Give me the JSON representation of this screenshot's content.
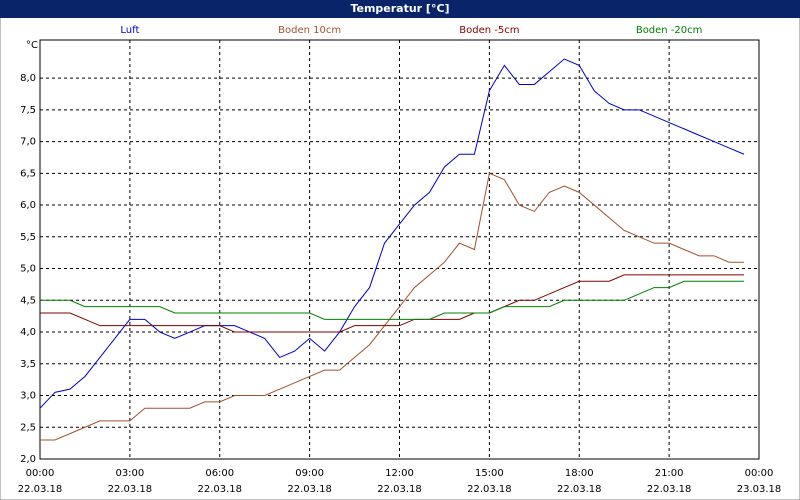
{
  "chart_data": {
    "type": "line",
    "title": "Temperatur [°C]",
    "ylabel": "°C",
    "x": [
      0,
      0.5,
      1,
      1.5,
      2,
      2.5,
      3,
      3.5,
      4,
      4.5,
      5,
      5.5,
      6,
      6.5,
      7,
      7.5,
      8,
      8.5,
      9,
      9.5,
      10,
      10.5,
      11,
      11.5,
      12,
      12.5,
      13,
      13.5,
      14,
      14.5,
      15,
      15.5,
      16,
      16.5,
      17,
      17.5,
      18,
      18.5,
      19,
      19.5,
      20,
      20.5,
      21,
      21.5,
      22,
      22.5,
      23,
      23.5
    ],
    "series": [
      {
        "name": "Luft",
        "color": "#0000cc",
        "values": [
          2.8,
          3.05,
          3.1,
          3.3,
          3.6,
          3.9,
          4.2,
          4.2,
          4.0,
          3.9,
          4.0,
          4.1,
          4.1,
          4.1,
          4.0,
          3.9,
          3.6,
          3.7,
          3.9,
          3.7,
          4.0,
          4.4,
          4.7,
          5.4,
          5.7,
          6.0,
          6.2,
          6.6,
          6.8,
          6.8,
          7.8,
          8.2,
          7.9,
          7.9,
          8.1,
          8.3,
          8.2,
          7.8,
          7.6,
          7.5,
          7.5,
          7.4,
          7.3,
          7.2,
          7.1,
          7.0,
          6.9,
          6.8
        ]
      },
      {
        "name": "Boden 10cm",
        "color": "#a0522d",
        "values": [
          2.3,
          2.3,
          2.4,
          2.5,
          2.6,
          2.6,
          2.6,
          2.8,
          2.8,
          2.8,
          2.8,
          2.9,
          2.9,
          3.0,
          3.0,
          3.0,
          3.1,
          3.2,
          3.3,
          3.4,
          3.4,
          3.6,
          3.8,
          4.1,
          4.4,
          4.7,
          4.9,
          5.1,
          5.4,
          5.3,
          6.5,
          6.4,
          6.0,
          5.9,
          6.2,
          6.3,
          6.2,
          6.0,
          5.8,
          5.6,
          5.5,
          5.4,
          5.4,
          5.3,
          5.2,
          5.2,
          5.1,
          5.1
        ]
      },
      {
        "name": "Boden -5cm",
        "color": "#800000",
        "values": [
          4.3,
          4.3,
          4.3,
          4.2,
          4.1,
          4.1,
          4.1,
          4.1,
          4.1,
          4.1,
          4.1,
          4.1,
          4.1,
          4.0,
          4.0,
          4.0,
          4.0,
          4.0,
          4.0,
          4.0,
          4.0,
          4.1,
          4.1,
          4.1,
          4.1,
          4.2,
          4.2,
          4.2,
          4.2,
          4.3,
          4.3,
          4.4,
          4.5,
          4.5,
          4.6,
          4.7,
          4.8,
          4.8,
          4.8,
          4.9,
          4.9,
          4.9,
          4.9,
          4.9,
          4.9,
          4.9,
          4.9,
          4.9
        ]
      },
      {
        "name": "Boden -20cm",
        "color": "#008000",
        "values": [
          4.5,
          4.5,
          4.5,
          4.4,
          4.4,
          4.4,
          4.4,
          4.4,
          4.4,
          4.3,
          4.3,
          4.3,
          4.3,
          4.3,
          4.3,
          4.3,
          4.3,
          4.3,
          4.3,
          4.2,
          4.2,
          4.2,
          4.2,
          4.2,
          4.2,
          4.2,
          4.2,
          4.3,
          4.3,
          4.3,
          4.3,
          4.4,
          4.4,
          4.4,
          4.4,
          4.5,
          4.5,
          4.5,
          4.5,
          4.5,
          4.6,
          4.7,
          4.7,
          4.8,
          4.8,
          4.8,
          4.8,
          4.8
        ]
      }
    ],
    "xlim": [
      0,
      24
    ],
    "xticks": [
      {
        "value": 0,
        "label": "00:00"
      },
      {
        "value": 3,
        "label": "03:00"
      },
      {
        "value": 6,
        "label": "06:00"
      },
      {
        "value": 9,
        "label": "09:00"
      },
      {
        "value": 12,
        "label": "12:00"
      },
      {
        "value": 15,
        "label": "15:00"
      },
      {
        "value": 18,
        "label": "18:00"
      },
      {
        "value": 21,
        "label": "21:00"
      },
      {
        "value": 24,
        "label": "00:00"
      }
    ],
    "xtick_dates": [
      "22.03.18",
      "22.03.18",
      "22.03.18",
      "22.03.18",
      "22.03.18",
      "22.03.18",
      "22.03.18",
      "22.03.18",
      "23.03.18"
    ],
    "ylim": [
      2,
      8.6
    ],
    "yticks": [
      {
        "value": 2,
        "label": "2,0"
      },
      {
        "value": 2.5,
        "label": "2,5"
      },
      {
        "value": 3,
        "label": "3,0"
      },
      {
        "value": 3.5,
        "label": "3,5"
      },
      {
        "value": 4,
        "label": "4,0"
      },
      {
        "value": 4.5,
        "label": "4,5"
      },
      {
        "value": 5,
        "label": "5,0"
      },
      {
        "value": 5.5,
        "label": "5,5"
      },
      {
        "value": 6,
        "label": "6,0"
      },
      {
        "value": 6.5,
        "label": "6,5"
      },
      {
        "value": 7,
        "label": "7,0"
      },
      {
        "value": 7.5,
        "label": "7,5"
      },
      {
        "value": 8,
        "label": "8,0"
      }
    ],
    "grid": true
  }
}
